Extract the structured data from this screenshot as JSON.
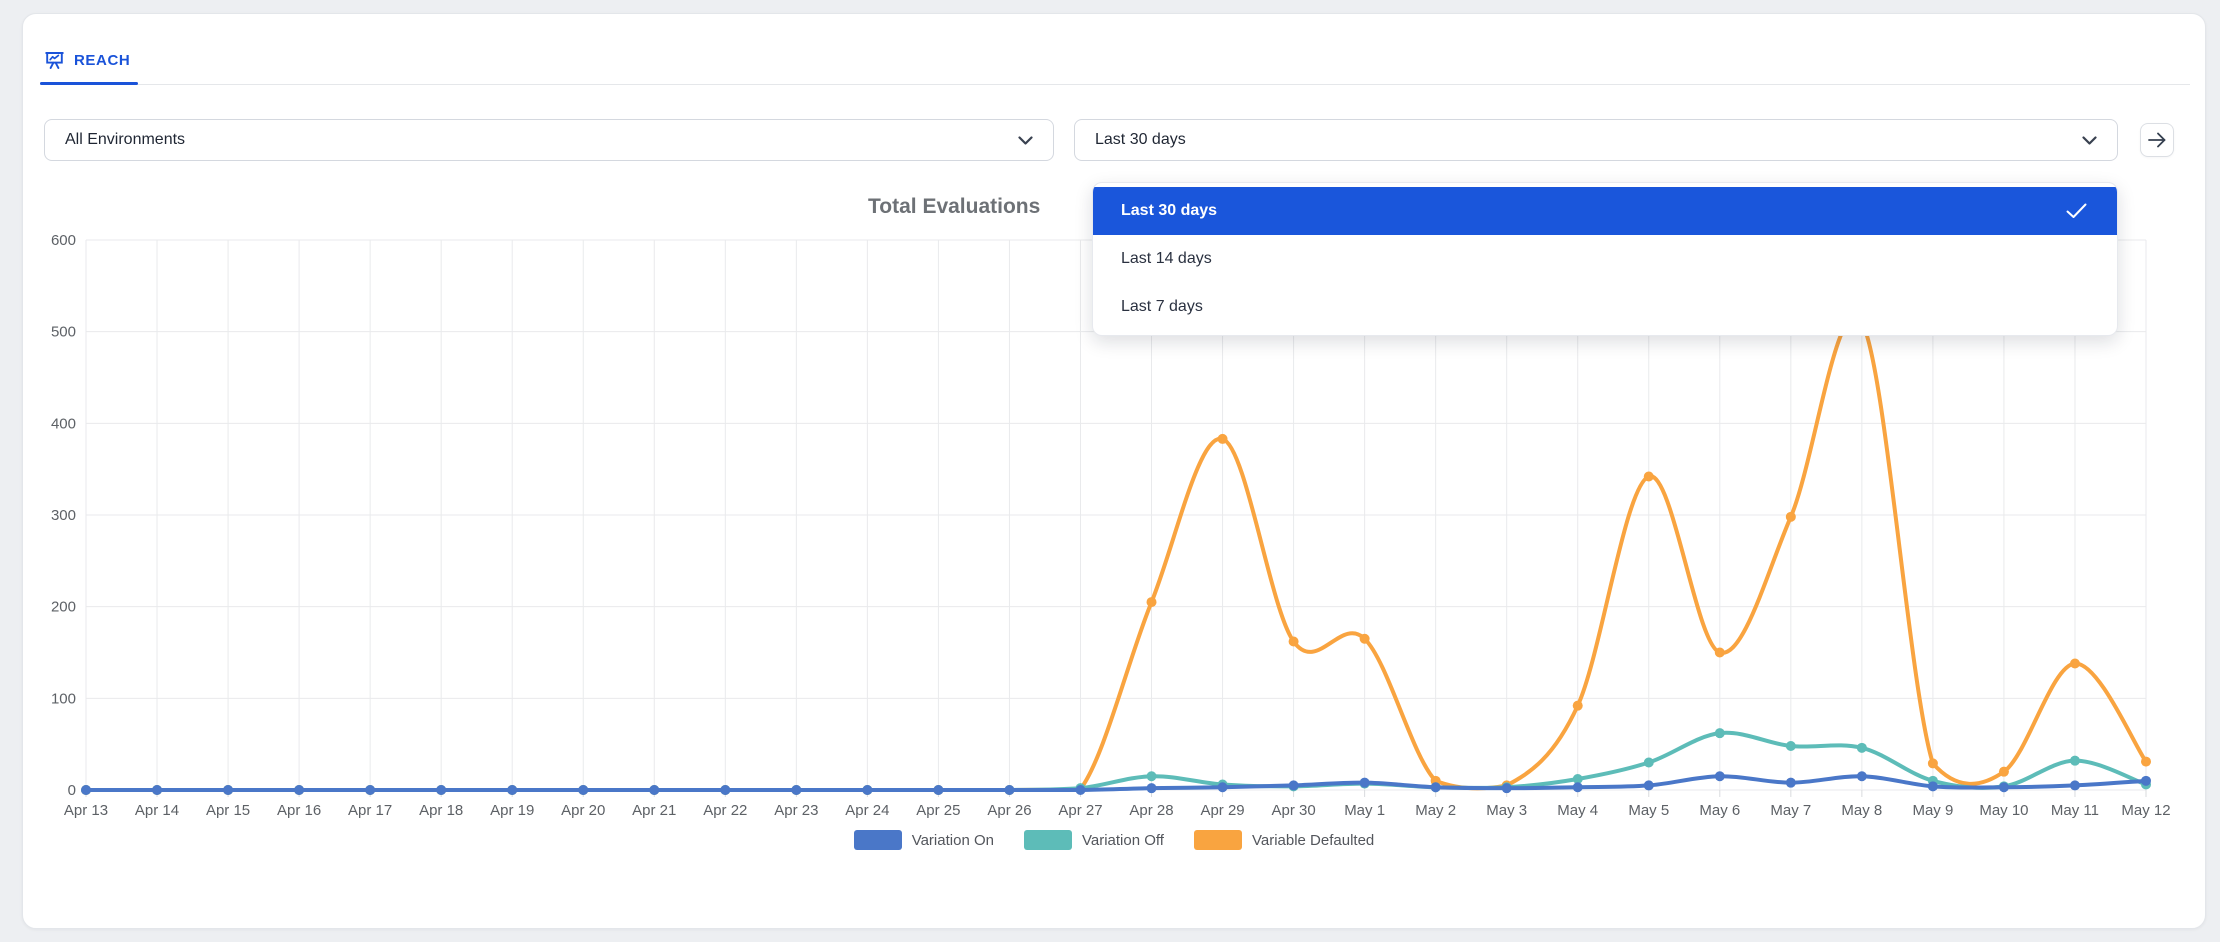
{
  "tab": {
    "label": "REACH"
  },
  "filters": {
    "environment": {
      "value": "All Environments"
    },
    "date_range": {
      "value": "Last 30 days"
    },
    "forward_icon": "→"
  },
  "dropdown_menu": {
    "options": [
      {
        "label": "Last 30 days",
        "selected": true
      },
      {
        "label": "Last 14 days",
        "selected": false
      },
      {
        "label": "Last 7 days",
        "selected": false
      }
    ]
  },
  "chart_data": {
    "type": "line",
    "title": "Total Evaluations",
    "smooth": true,
    "grid": true,
    "legend_position": "bottom",
    "ylim": [
      0,
      600
    ],
    "yticks": [
      0,
      100,
      200,
      300,
      400,
      500,
      600
    ],
    "x": [
      "Apr 13",
      "Apr 14",
      "Apr 15",
      "Apr 16",
      "Apr 17",
      "Apr 18",
      "Apr 19",
      "Apr 20",
      "Apr 21",
      "Apr 22",
      "Apr 23",
      "Apr 24",
      "Apr 25",
      "Apr 26",
      "Apr 27",
      "Apr 28",
      "Apr 29",
      "Apr 30",
      "May 1",
      "May 2",
      "May 3",
      "May 4",
      "May 5",
      "May 6",
      "May 7",
      "May 8",
      "May 9",
      "May 10",
      "May 11",
      "May 12"
    ],
    "series": [
      {
        "name": "Variation On",
        "color": "#4a77c8",
        "values": [
          0,
          0,
          0,
          0,
          0,
          0,
          0,
          0,
          0,
          0,
          0,
          0,
          0,
          0,
          0,
          2,
          3,
          5,
          8,
          3,
          2,
          3,
          5,
          15,
          8,
          15,
          4,
          3,
          5,
          10
        ]
      },
      {
        "name": "Variation Off",
        "color": "#5dbcb8",
        "values": [
          0,
          0,
          0,
          0,
          0,
          0,
          0,
          0,
          0,
          0,
          0,
          0,
          0,
          0,
          2,
          15,
          6,
          4,
          7,
          3,
          3,
          12,
          30,
          62,
          48,
          46,
          10,
          4,
          32,
          6
        ]
      },
      {
        "name": "Variable Defaulted",
        "color": "#f9a440",
        "values": [
          0,
          0,
          0,
          0,
          0,
          0,
          0,
          0,
          0,
          0,
          0,
          0,
          0,
          0,
          1,
          205,
          383,
          162,
          165,
          10,
          5,
          92,
          342,
          150,
          298,
          510,
          29,
          20,
          138,
          31
        ]
      }
    ]
  },
  "colors": {
    "accent_blue": "#1a56db",
    "axis_text": "#5d6166",
    "gridline": "#e9eaec",
    "title_gray": "#6d7176"
  }
}
